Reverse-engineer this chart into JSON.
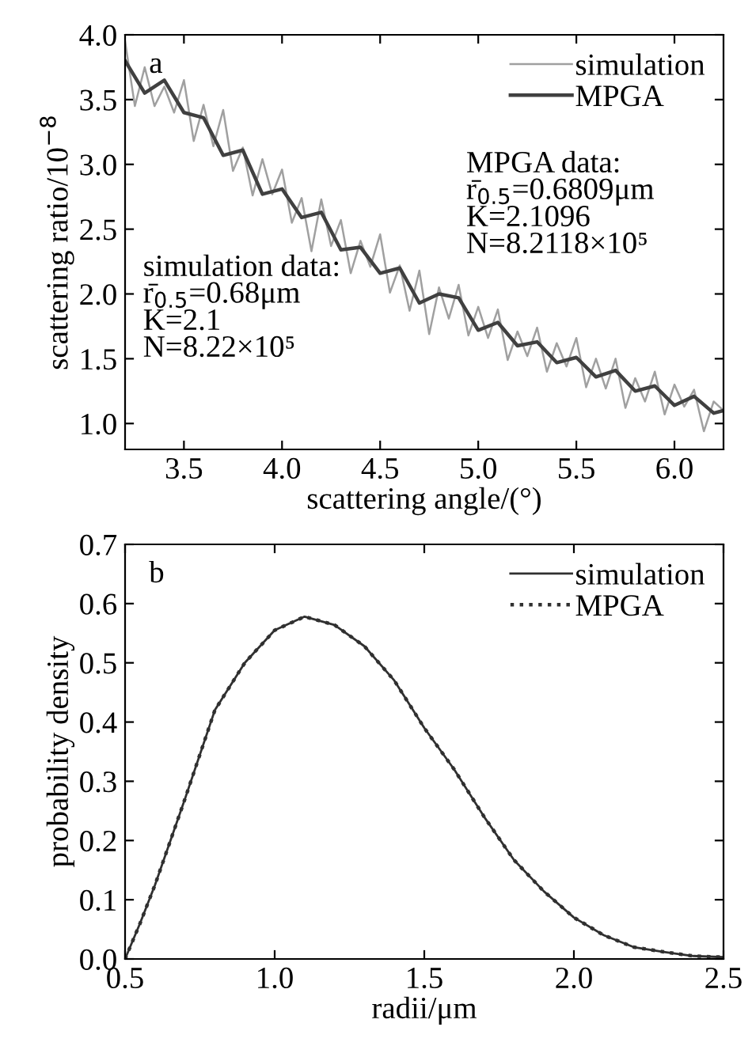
{
  "chart_data": [
    {
      "type": "line",
      "xlabel": "scattering angle/(°)",
      "ylabel": "scattering ratio/10$^{−8}$",
      "xlim": [
        3.2,
        6.25
      ],
      "ylim": [
        0.8,
        4.0
      ],
      "xticks": [
        3.5,
        {
          "value": 4,
          "label": "4.0"
        },
        4.5,
        {
          "value": 5,
          "label": "5.0"
        },
        5.5,
        {
          "value": 6,
          "label": "6.0"
        }
      ],
      "yticks": [
        {
          "value": 1,
          "label": "1.0"
        },
        1.5,
        {
          "value": 2,
          "label": "2.0"
        },
        2.5,
        {
          "value": 3,
          "label": "3.0"
        },
        3.5,
        {
          "value": 4,
          "label": "4.0"
        }
      ],
      "grid": false,
      "legend": "top right",
      "annotations": [
        "a",
        "MPGA data:\nr̄$_{0.5}$=0.6809μm\nK=2.1096\nN=8.2118×10⁵",
        "simulation data:\nr̄$_{0.5}$=0.68μm\nK=2.1\nN=8.22×10⁵"
      ],
      "series": [
        {
          "name": "simulation",
          "color": "#a0a0a0",
          "x": [
            3.2,
            3.25,
            3.3,
            3.35,
            3.4,
            3.45,
            3.5,
            3.55,
            3.6,
            3.65,
            3.7,
            3.75,
            3.8,
            3.85,
            3.9,
            3.95,
            4.0,
            4.05,
            4.1,
            4.15,
            4.2,
            4.25,
            4.3,
            4.35,
            4.4,
            4.45,
            4.5,
            4.55,
            4.6,
            4.65,
            4.7,
            4.75,
            4.8,
            4.85,
            4.9,
            4.95,
            5.0,
            5.05,
            5.1,
            5.15,
            5.2,
            5.25,
            5.3,
            5.35,
            5.4,
            5.45,
            5.5,
            5.55,
            5.6,
            5.65,
            5.7,
            5.75,
            5.8,
            5.85,
            5.9,
            5.95,
            6.0,
            6.05,
            6.1,
            6.15,
            6.2,
            6.25
          ],
          "values": [
            3.95,
            3.45,
            3.75,
            3.45,
            3.6,
            3.4,
            3.65,
            3.18,
            3.46,
            3.14,
            3.42,
            2.95,
            3.13,
            2.76,
            3.04,
            2.77,
            2.96,
            2.55,
            2.74,
            2.33,
            2.73,
            2.37,
            2.57,
            2.16,
            2.41,
            2.21,
            2.46,
            2.01,
            2.22,
            1.87,
            2.18,
            1.69,
            2.05,
            1.81,
            2.07,
            1.68,
            1.9,
            1.66,
            1.88,
            1.49,
            1.71,
            1.52,
            1.74,
            1.4,
            1.62,
            1.44,
            1.66,
            1.28,
            1.5,
            1.27,
            1.5,
            1.12,
            1.35,
            1.17,
            1.4,
            1.07,
            1.3,
            1.13,
            1.26,
            0.94,
            1.17,
            1.1
          ]
        },
        {
          "name": "MPGA",
          "color": "#404040",
          "x": [
            3.2,
            3.3,
            3.4,
            3.5,
            3.6,
            3.7,
            3.8,
            3.9,
            4.0,
            4.1,
            4.2,
            4.3,
            4.4,
            4.5,
            4.6,
            4.7,
            4.8,
            4.9,
            5.0,
            5.1,
            5.2,
            5.3,
            5.4,
            5.5,
            5.6,
            5.7,
            5.8,
            5.9,
            6.0,
            6.1,
            6.2,
            6.25
          ],
          "values": [
            3.8,
            3.55,
            3.65,
            3.4,
            3.36,
            3.07,
            3.11,
            2.77,
            2.81,
            2.59,
            2.63,
            2.34,
            2.36,
            2.16,
            2.2,
            1.93,
            2.0,
            1.97,
            1.72,
            1.78,
            1.6,
            1.63,
            1.47,
            1.51,
            1.36,
            1.41,
            1.25,
            1.29,
            1.14,
            1.21,
            1.08,
            1.1
          ]
        }
      ]
    },
    {
      "type": "line",
      "xlabel": "radii/μm",
      "ylabel": "probability density",
      "xlim": [
        0.5,
        2.5
      ],
      "ylim": [
        0.0,
        0.7
      ],
      "xticks": [
        0.5,
        {
          "value": 1,
          "label": "1.0"
        },
        1.5,
        {
          "value": 2,
          "label": "2.0"
        },
        2.5
      ],
      "yticks": [
        {
          "value": 0,
          "label": "0.0"
        },
        0.1,
        0.2,
        0.3,
        0.4,
        0.5,
        0.6,
        0.7
      ],
      "grid": false,
      "legend": "top right",
      "annotations": [
        "b"
      ],
      "series": [
        {
          "name": "simulation",
          "color": "#303030",
          "line_style": "solid",
          "x": [
            0.5,
            0.55,
            0.6,
            0.7,
            0.8,
            0.9,
            1.0,
            1.1,
            1.2,
            1.3,
            1.4,
            1.5,
            1.6,
            1.7,
            1.8,
            1.9,
            2.0,
            2.1,
            2.2,
            2.3,
            2.4,
            2.5
          ],
          "values": [
            0.0,
            0.06,
            0.125,
            0.27,
            0.42,
            0.5,
            0.555,
            0.578,
            0.564,
            0.528,
            0.47,
            0.39,
            0.32,
            0.24,
            0.167,
            0.114,
            0.07,
            0.04,
            0.02,
            0.012,
            0.005,
            0.003
          ]
        },
        {
          "name": "MPGA",
          "color": "#303030",
          "line_style": "dotted",
          "x": [
            0.5,
            0.55,
            0.6,
            0.7,
            0.8,
            0.9,
            1.0,
            1.1,
            1.2,
            1.3,
            1.4,
            1.5,
            1.6,
            1.7,
            1.8,
            1.9,
            2.0,
            2.1,
            2.2,
            2.3,
            2.4,
            2.5
          ],
          "values": [
            0.0,
            0.06,
            0.125,
            0.27,
            0.42,
            0.5,
            0.555,
            0.578,
            0.564,
            0.528,
            0.47,
            0.39,
            0.32,
            0.24,
            0.167,
            0.114,
            0.07,
            0.04,
            0.02,
            0.012,
            0.005,
            0.003
          ]
        }
      ]
    }
  ]
}
